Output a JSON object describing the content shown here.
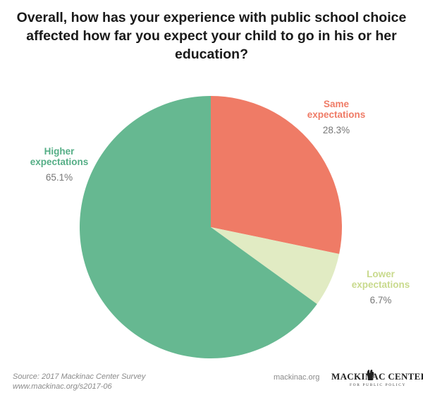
{
  "chart_data": {
    "type": "pie",
    "title": "Overall, how has your experience with public school choice affected how far you expect your child to go in his or her education?",
    "slices": [
      {
        "label": "Same expectations",
        "label_lines": [
          "Same",
          "expectations"
        ],
        "value": 28.3,
        "value_label": "28.3%",
        "color": "#ef7b66",
        "label_color": "#ef7b66"
      },
      {
        "label": "Lower expectations",
        "label_lines": [
          "Lower",
          "expectations"
        ],
        "value": 6.7,
        "value_label": "6.7%",
        "color": "#e1ebc3",
        "label_color": "#c9da8d"
      },
      {
        "label": "Higher expectations",
        "label_lines": [
          "Higher",
          "expectations"
        ],
        "value": 65.1,
        "value_label": "65.1%",
        "color": "#66b891",
        "label_color": "#55ae86"
      }
    ]
  },
  "footer": {
    "source_line1": "Source: 2017 Mackinac Center Survey",
    "source_line2": "www.mackinac.org/s2017-06",
    "site": "mackinac.org",
    "logo_main": "MACKINAC CENTER",
    "logo_sub": "FOR PUBLIC POLICY"
  }
}
